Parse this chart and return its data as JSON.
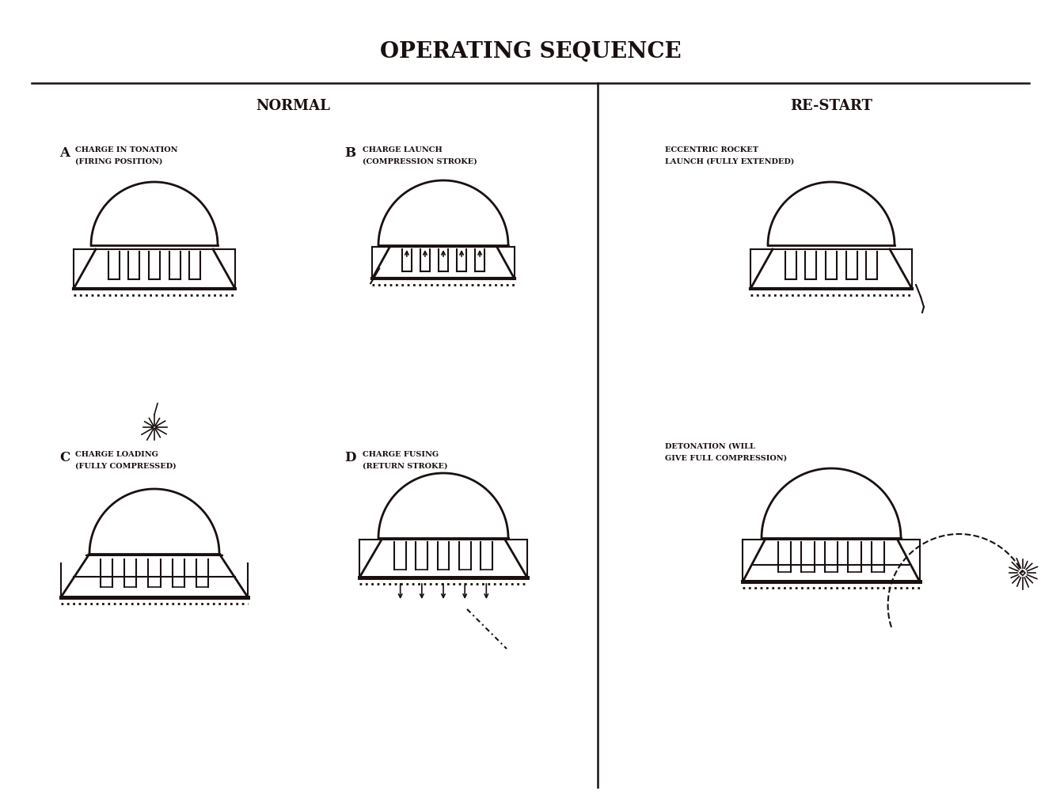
{
  "title": "OPERATING SEQUENCE",
  "title_fontsize": 20,
  "title_weight": "bold",
  "bg_color": "#ffffff",
  "line_color": "#1a1010",
  "section_normal": "NORMAL",
  "section_restart": "RE-START",
  "label_A": "A",
  "label_B": "B",
  "label_C": "C",
  "label_D": "D",
  "text_A1": "CHARGE IN TONATION",
  "text_A2": "(FIRING POSITION)",
  "text_B1": "CHARGE LAUNCH",
  "text_B2": "(COMPRESSION STROKE)",
  "text_C1": "CHARGE LOADING",
  "text_C2": "(FULLY COMPRESSED)",
  "text_D1": "CHARGE FUSING",
  "text_D2": "(RETURN STROKE)",
  "text_R1a": "ECCENTRIC ROCKET",
  "text_R1b": "LAUNCH (FULLY EXTENDED)",
  "text_R2a": "DETONATION (WILL",
  "text_R2b": "GIVE FULL COMPRESSION)",
  "fig_width": 13.39,
  "fig_height": 10.15
}
